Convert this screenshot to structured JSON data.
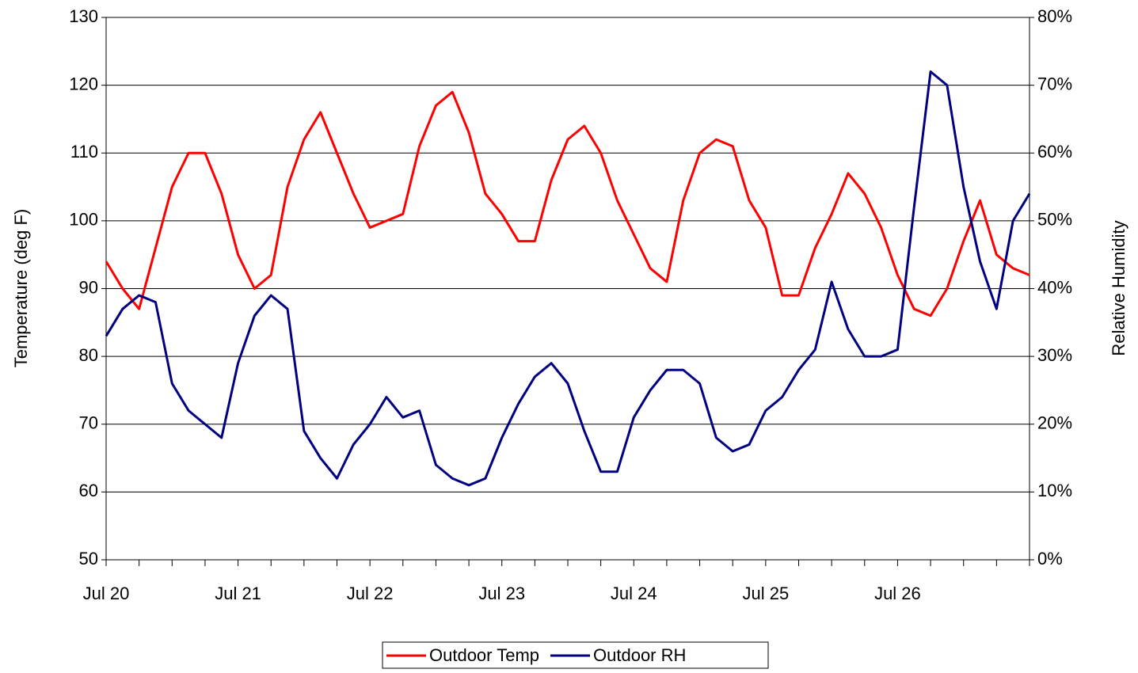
{
  "chart_data": {
    "type": "line",
    "categories": [
      "Jul 20",
      null,
      null,
      null,
      null,
      null,
      null,
      null,
      "Jul 21",
      null,
      null,
      null,
      null,
      null,
      null,
      null,
      "Jul 22",
      null,
      null,
      null,
      null,
      null,
      null,
      null,
      "Jul 23",
      null,
      null,
      null,
      null,
      null,
      null,
      null,
      "Jul 24",
      null,
      null,
      null,
      null,
      null,
      null,
      null,
      "Jul 25",
      null,
      null,
      null,
      null,
      null,
      null,
      null,
      "Jul 26",
      null,
      null,
      null,
      null,
      null,
      null,
      null,
      null
    ],
    "y_label": "Temperature (deg F)",
    "y2_label": "Relative Humidity",
    "ylim": [
      50,
      130
    ],
    "yticks": [
      50,
      60,
      70,
      80,
      90,
      100,
      110,
      120,
      130
    ],
    "y2lim": [
      0,
      80
    ],
    "y2ticks": [
      {
        "value": 0,
        "label": "0%"
      },
      {
        "value": 10,
        "label": "10%"
      },
      {
        "value": 20,
        "label": "20%"
      },
      {
        "value": 30,
        "label": "30%"
      },
      {
        "value": 40,
        "label": "40%"
      },
      {
        "value": 50,
        "label": "50%"
      },
      {
        "value": 60,
        "label": "60%"
      },
      {
        "value": 70,
        "label": "70%"
      },
      {
        "value": 80,
        "label": "80%"
      }
    ],
    "grid": true,
    "legend": "bottom",
    "series": [
      {
        "name": "Outdoor Temp",
        "color": "#ff0000",
        "values": [
          94,
          90,
          87,
          96,
          105,
          110,
          110,
          104,
          95,
          90,
          92,
          105,
          112,
          116,
          110,
          104,
          99,
          100,
          101,
          111,
          117,
          119,
          113,
          104,
          101,
          97,
          97,
          106,
          112,
          114,
          110,
          103,
          98,
          93,
          91,
          103,
          110,
          112,
          111,
          103,
          99,
          89,
          89,
          96,
          101,
          107,
          104,
          99,
          92,
          87,
          86,
          90,
          97,
          103,
          95,
          93,
          92
        ]
      },
      {
        "name": "Outdoor RH",
        "color": "#000080",
        "axis": "y2",
        "values": [
          33,
          37,
          39,
          38,
          26,
          22,
          20,
          18,
          29,
          36,
          39,
          37,
          19,
          15,
          12,
          17,
          20,
          24,
          21,
          22,
          14,
          12,
          11,
          12,
          18,
          23,
          27,
          29,
          26,
          19,
          13,
          13,
          21,
          25,
          28,
          28,
          26,
          18,
          16,
          17,
          22,
          24,
          28,
          31,
          41,
          34,
          30,
          30,
          31,
          52,
          72,
          70,
          55,
          44,
          37,
          50,
          54
        ]
      }
    ]
  }
}
